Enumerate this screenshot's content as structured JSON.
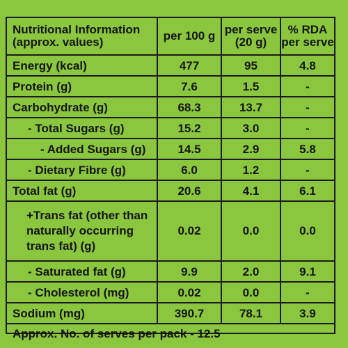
{
  "header": {
    "col0_line1": "Nutritional Information",
    "col0_line2": "(approx. values)",
    "col1": "per 100 g",
    "col2_line1": "per serve",
    "col2_line2": "(20 g)",
    "col3_line1": "% RDA",
    "col3_line2": "per serve"
  },
  "rows": [
    {
      "name": "Energy (kcal)",
      "per100": "477",
      "perServe": "95",
      "rda": "4.8"
    },
    {
      "name": "Protein (g)",
      "per100": "7.6",
      "perServe": "1.5",
      "rda": "-"
    },
    {
      "name": "Carbohydrate (g)",
      "per100": "68.3",
      "perServe": "13.7",
      "rda": "-"
    },
    {
      "name": "- Total Sugars (g)",
      "per100": "15.2",
      "perServe": "3.0",
      "rda": "-"
    },
    {
      "name": "- Added Sugars (g)",
      "per100": "14.5",
      "perServe": "2.9",
      "rda": "5.8"
    },
    {
      "name": "- Dietary Fibre (g)",
      "per100": "6.0",
      "perServe": "1.2",
      "rda": "-"
    },
    {
      "name": "Total fat (g)",
      "per100": "20.6",
      "perServe": "4.1",
      "rda": "6.1"
    },
    {
      "name_line1": "+Trans fat (other than",
      "name_line2": "naturally occurring",
      "name_line3": "trans fat) (g)",
      "per100": "0.02",
      "perServe": "0.0",
      "rda": "0.0"
    },
    {
      "name": "- Saturated fat (g)",
      "per100": "9.9",
      "perServe": "2.0",
      "rda": "9.1"
    },
    {
      "name": "- Cholesterol (mg)",
      "per100": "0.02",
      "perServe": "0.0",
      "rda": "-"
    },
    {
      "name": "Sodium (mg)",
      "per100": "390.7",
      "perServe": "78.1",
      "rda": "3.9"
    }
  ],
  "footer": "Approx. No. of serves per pack - 12.5",
  "colors": {
    "background": "#8bc63f",
    "text": "#141414",
    "border": "#1a1a1a"
  }
}
